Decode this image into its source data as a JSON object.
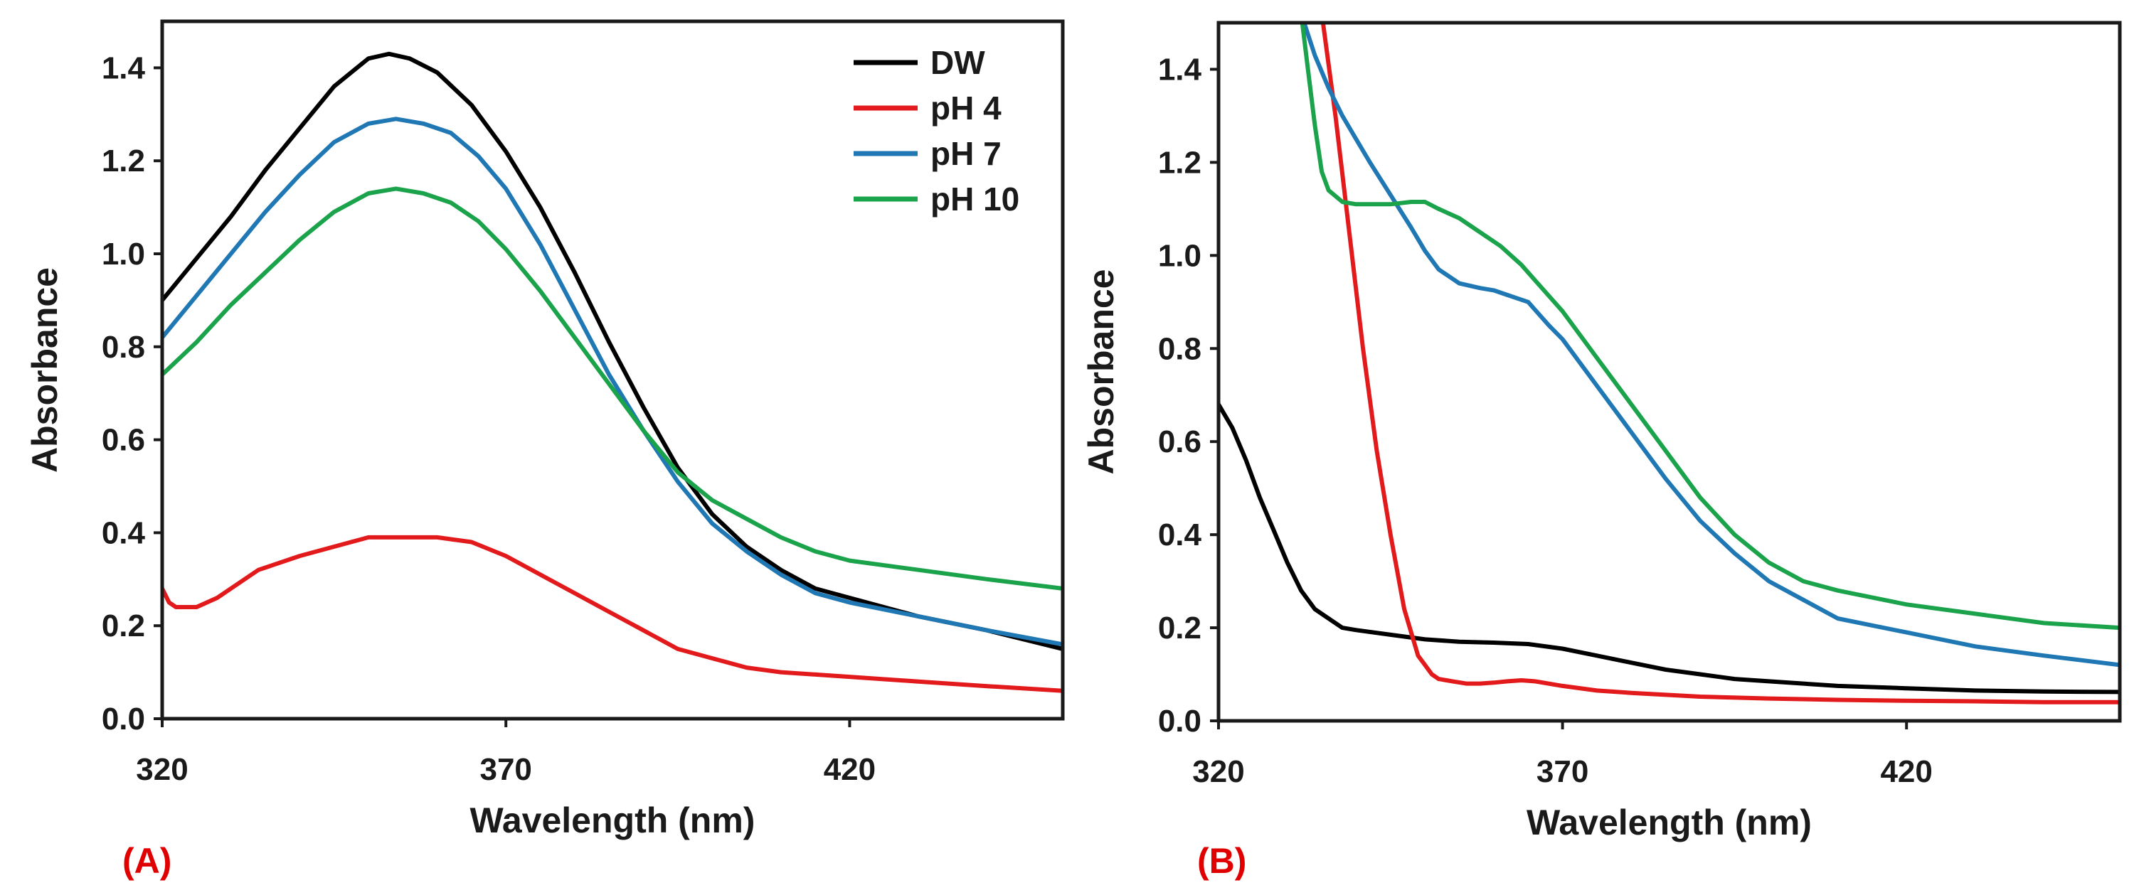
{
  "chart_data": [
    {
      "type": "line",
      "panel_label": "(A)",
      "xlabel": "Wavelength (nm)",
      "ylabel": "Absorbance",
      "xlim": [
        320,
        451
      ],
      "ylim": [
        0.0,
        1.5
      ],
      "xticks": [
        320,
        370,
        420
      ],
      "xtick_labels": [
        "320",
        "370",
        "420"
      ],
      "yticks": [
        0.0,
        0.2,
        0.4,
        0.6,
        0.8,
        1.0,
        1.2,
        1.4
      ],
      "ytick_labels": [
        "0.0",
        "0.2",
        "0.4",
        "0.6",
        "0.8",
        "1.0",
        "1.2",
        "1.4"
      ],
      "legend_position": "top-right",
      "series": [
        {
          "name": "DW",
          "color": "#000000",
          "x": [
            320,
            325,
            330,
            335,
            340,
            345,
            350,
            353,
            356,
            360,
            365,
            370,
            375,
            380,
            385,
            390,
            395,
            400,
            405,
            410,
            415,
            420,
            430,
            440,
            451
          ],
          "y": [
            0.9,
            0.99,
            1.08,
            1.18,
            1.27,
            1.36,
            1.42,
            1.43,
            1.42,
            1.39,
            1.32,
            1.22,
            1.1,
            0.96,
            0.81,
            0.67,
            0.54,
            0.44,
            0.37,
            0.32,
            0.28,
            0.26,
            0.22,
            0.19,
            0.15
          ]
        },
        {
          "name": "pH 4",
          "color": "#e31a1c",
          "x": [
            320,
            321,
            322,
            325,
            328,
            331,
            334,
            336,
            340,
            345,
            350,
            355,
            360,
            365,
            370,
            375,
            380,
            385,
            390,
            395,
            400,
            405,
            410,
            420,
            430,
            440,
            451
          ],
          "y": [
            0.28,
            0.25,
            0.24,
            0.24,
            0.26,
            0.29,
            0.32,
            0.33,
            0.35,
            0.37,
            0.39,
            0.39,
            0.39,
            0.38,
            0.35,
            0.31,
            0.27,
            0.23,
            0.19,
            0.15,
            0.13,
            0.11,
            0.1,
            0.09,
            0.08,
            0.07,
            0.06
          ]
        },
        {
          "name": "pH 7",
          "color": "#1f78b4",
          "x": [
            320,
            325,
            330,
            335,
            340,
            345,
            350,
            354,
            358,
            362,
            366,
            370,
            375,
            380,
            385,
            390,
            395,
            400,
            405,
            410,
            415,
            420,
            430,
            440,
            451
          ],
          "y": [
            0.82,
            0.91,
            1.0,
            1.09,
            1.17,
            1.24,
            1.28,
            1.29,
            1.28,
            1.26,
            1.21,
            1.14,
            1.02,
            0.88,
            0.74,
            0.62,
            0.51,
            0.42,
            0.36,
            0.31,
            0.27,
            0.25,
            0.22,
            0.19,
            0.16
          ]
        },
        {
          "name": "pH 10",
          "color": "#1aa34a",
          "x": [
            320,
            325,
            330,
            335,
            340,
            345,
            350,
            354,
            358,
            362,
            366,
            370,
            375,
            380,
            385,
            390,
            395,
            400,
            405,
            410,
            415,
            420,
            430,
            440,
            451
          ],
          "y": [
            0.74,
            0.81,
            0.89,
            0.96,
            1.03,
            1.09,
            1.13,
            1.14,
            1.13,
            1.11,
            1.07,
            1.01,
            0.92,
            0.82,
            0.72,
            0.62,
            0.53,
            0.47,
            0.43,
            0.39,
            0.36,
            0.34,
            0.32,
            0.3,
            0.28
          ]
        }
      ]
    },
    {
      "type": "line",
      "panel_label": "(B)",
      "xlabel": "Wavelength (nm)",
      "ylabel": "Absorbance",
      "xlim": [
        320,
        451
      ],
      "ylim": [
        0.0,
        1.5
      ],
      "xticks": [
        320,
        370,
        420
      ],
      "xtick_labels": [
        "320",
        "370",
        "420"
      ],
      "yticks": [
        0.0,
        0.2,
        0.4,
        0.6,
        0.8,
        1.0,
        1.2,
        1.4
      ],
      "ytick_labels": [
        "0.0",
        "0.2",
        "0.4",
        "0.6",
        "0.8",
        "1.0",
        "1.2",
        "1.4"
      ],
      "series": [
        {
          "name": "DW",
          "color": "#000000",
          "x": [
            320,
            322,
            324,
            326,
            328,
            330,
            332,
            334,
            336,
            338,
            340,
            345,
            350,
            355,
            360,
            365,
            370,
            375,
            380,
            385,
            390,
            395,
            400,
            410,
            420,
            430,
            440,
            451
          ],
          "y": [
            0.68,
            0.63,
            0.56,
            0.48,
            0.41,
            0.34,
            0.28,
            0.24,
            0.22,
            0.2,
            0.195,
            0.185,
            0.175,
            0.17,
            0.168,
            0.165,
            0.155,
            0.14,
            0.125,
            0.11,
            0.1,
            0.09,
            0.085,
            0.075,
            0.07,
            0.065,
            0.063,
            0.062
          ]
        },
        {
          "name": "pH 4",
          "color": "#e31a1c",
          "x": [
            335,
            337,
            339,
            341,
            343,
            345,
            347,
            349,
            350,
            351,
            352,
            354,
            356,
            358,
            360,
            362,
            364,
            366,
            370,
            375,
            380,
            390,
            400,
            410,
            420,
            430,
            440,
            451
          ],
          "y": [
            1.52,
            1.3,
            1.05,
            0.8,
            0.58,
            0.4,
            0.24,
            0.14,
            0.12,
            0.1,
            0.09,
            0.085,
            0.08,
            0.08,
            0.082,
            0.085,
            0.087,
            0.085,
            0.075,
            0.065,
            0.06,
            0.052,
            0.048,
            0.045,
            0.043,
            0.042,
            0.04,
            0.04
          ]
        },
        {
          "name": "pH 7",
          "color": "#1f78b4",
          "x": [
            332,
            334,
            336,
            338,
            340,
            342,
            345,
            348,
            350,
            352,
            355,
            358,
            360,
            362,
            365,
            368,
            370,
            375,
            380,
            385,
            390,
            395,
            400,
            405,
            410,
            420,
            430,
            440,
            451
          ],
          "y": [
            1.52,
            1.43,
            1.36,
            1.3,
            1.25,
            1.2,
            1.13,
            1.06,
            1.01,
            0.97,
            0.94,
            0.93,
            0.925,
            0.915,
            0.9,
            0.85,
            0.82,
            0.72,
            0.62,
            0.52,
            0.43,
            0.36,
            0.3,
            0.26,
            0.22,
            0.19,
            0.16,
            0.14,
            0.12
          ]
        },
        {
          "name": "pH 10",
          "color": "#1aa34a",
          "x": [
            332,
            333,
            334,
            335,
            336,
            338,
            340,
            342,
            345,
            348,
            350,
            352,
            355,
            358,
            361,
            364,
            367,
            370,
            375,
            380,
            385,
            390,
            395,
            400,
            405,
            410,
            420,
            430,
            440,
            451
          ],
          "y": [
            1.52,
            1.4,
            1.28,
            1.18,
            1.14,
            1.115,
            1.11,
            1.11,
            1.11,
            1.115,
            1.115,
            1.1,
            1.08,
            1.05,
            1.02,
            0.98,
            0.93,
            0.88,
            0.78,
            0.68,
            0.58,
            0.48,
            0.4,
            0.34,
            0.3,
            0.28,
            0.25,
            0.23,
            0.21,
            0.2
          ]
        }
      ]
    }
  ]
}
